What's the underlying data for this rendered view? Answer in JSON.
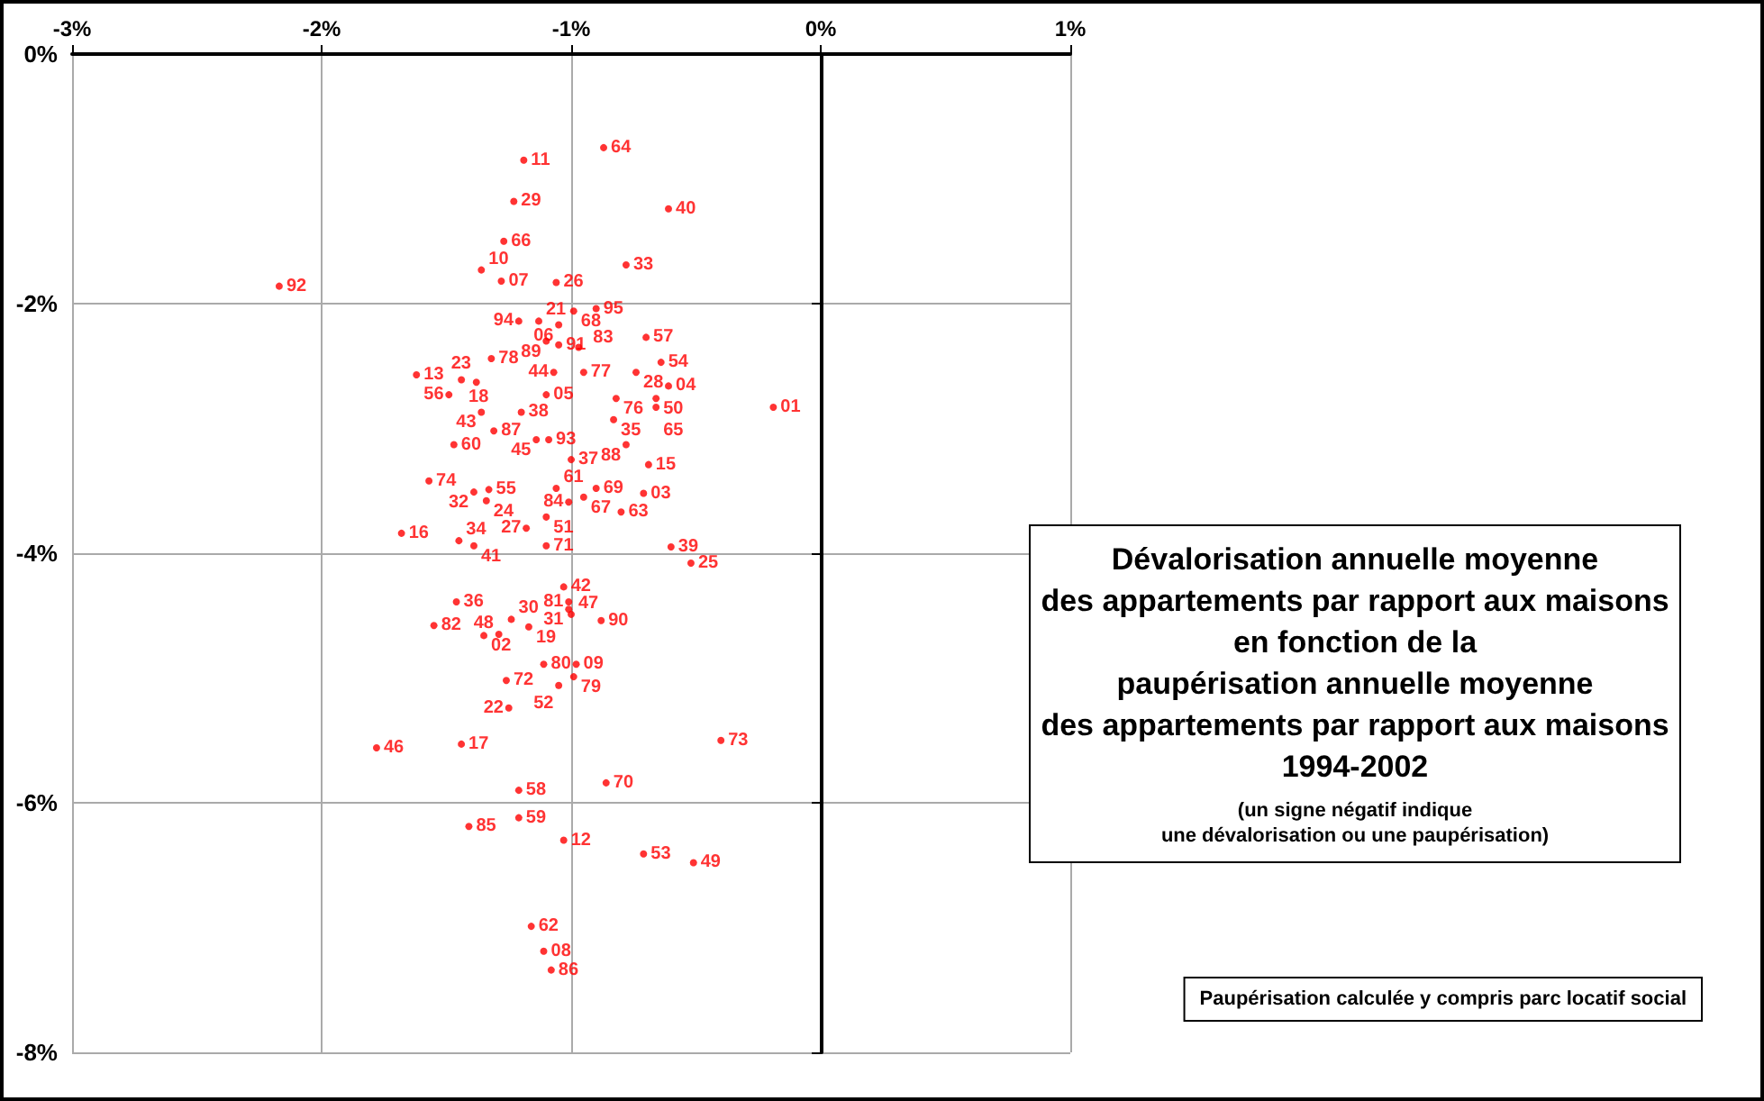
{
  "chart_data": {
    "type": "scatter",
    "title": "Dévalorisation annuelle moyenne\ndes appartements par rapport aux maisons\nen fonction de la\npaupérisation annuelle moyenne\ndes appartements par rapport aux maisons\n1994-2002",
    "subtitle": "(un signe négatif indique\nune dévalorisation ou une paupérisation)",
    "annotations": [
      "Paupérisation calculée y compris parc locatif social"
    ],
    "xlim": [
      -3,
      1
    ],
    "xticks": [
      {
        "value": -3,
        "label": "-3%"
      },
      {
        "value": -2,
        "label": "-2%"
      },
      {
        "value": -1,
        "label": "-1%"
      },
      {
        "value": 0,
        "label": "0%"
      },
      {
        "value": 1,
        "label": "1%"
      }
    ],
    "ylim": [
      -8,
      0
    ],
    "yticks": [
      {
        "value": -8,
        "label": "-8%"
      },
      {
        "value": -6,
        "label": "-6%"
      },
      {
        "value": -4,
        "label": "-4%"
      },
      {
        "value": -2,
        "label": "-2%"
      },
      {
        "value": 0,
        "label": "0%"
      }
    ],
    "grid": true,
    "marker": "circle",
    "series": [
      {
        "name": "64",
        "color": "#ff0000",
        "x": [
          -0.87
        ],
        "values": [
          -0.75
        ]
      },
      {
        "name": "11",
        "color": "#ff0000",
        "x": [
          -1.19
        ],
        "values": [
          -0.85
        ]
      },
      {
        "name": "40",
        "color": "#ff0000",
        "x": [
          -0.61
        ],
        "values": [
          -1.24
        ]
      },
      {
        "name": "29",
        "color": "#ff0000",
        "x": [
          -1.23
        ],
        "values": [
          -1.18
        ]
      },
      {
        "name": "66",
        "color": "#ff0000",
        "x": [
          -1.27
        ],
        "values": [
          -1.5
        ]
      },
      {
        "name": "33",
        "color": "#ff0000",
        "x": [
          -0.78
        ],
        "values": [
          -1.69
        ]
      },
      {
        "name": "10",
        "color": "#ff0000",
        "x": [
          -1.36
        ],
        "values": [
          -1.73
        ]
      },
      {
        "name": "07",
        "color": "#ff0000",
        "x": [
          -1.28
        ],
        "values": [
          -1.82
        ]
      },
      {
        "name": "26",
        "color": "#ff0000",
        "x": [
          -1.06
        ],
        "values": [
          -1.83
        ]
      },
      {
        "name": "92",
        "color": "#ff0000",
        "x": [
          -2.17
        ],
        "values": [
          -1.86
        ]
      },
      {
        "name": "68",
        "color": "#ff0000",
        "x": [
          -0.99
        ],
        "values": [
          -2.06
        ]
      },
      {
        "name": "95",
        "color": "#ff0000",
        "x": [
          -0.9
        ],
        "values": [
          -2.04
        ]
      },
      {
        "name": "94",
        "color": "#ff0000",
        "x": [
          -1.21
        ],
        "values": [
          -2.14
        ]
      },
      {
        "name": "21",
        "color": "#ff0000",
        "x": [
          -1.13
        ],
        "values": [
          -2.14
        ]
      },
      {
        "name": "06",
        "color": "#ff0000",
        "x": [
          -1.05
        ],
        "values": [
          -2.17
        ]
      },
      {
        "name": "89",
        "color": "#ff0000",
        "x": [
          -1.1
        ],
        "values": [
          -2.3
        ]
      },
      {
        "name": "91",
        "color": "#ff0000",
        "x": [
          -1.05
        ],
        "values": [
          -2.33
        ]
      },
      {
        "name": "83",
        "color": "#ff0000",
        "x": [
          -0.97
        ],
        "values": [
          -2.35
        ]
      },
      {
        "name": "57",
        "color": "#ff0000",
        "x": [
          -0.7
        ],
        "values": [
          -2.27
        ]
      },
      {
        "name": "78",
        "color": "#ff0000",
        "x": [
          -1.32
        ],
        "values": [
          -2.44
        ]
      },
      {
        "name": "54",
        "color": "#ff0000",
        "x": [
          -0.64
        ],
        "values": [
          -2.47
        ]
      },
      {
        "name": "13",
        "color": "#ff0000",
        "x": [
          -1.62
        ],
        "values": [
          -2.57
        ]
      },
      {
        "name": "18",
        "color": "#ff0000",
        "x": [
          -1.44
        ],
        "values": [
          -2.61
        ]
      },
      {
        "name": "23",
        "color": "#ff0000",
        "x": [
          -1.38
        ],
        "values": [
          -2.63
        ]
      },
      {
        "name": "44",
        "color": "#ff0000",
        "x": [
          -1.07
        ],
        "values": [
          -2.55
        ]
      },
      {
        "name": "77",
        "color": "#ff0000",
        "x": [
          -0.95
        ],
        "values": [
          -2.55
        ]
      },
      {
        "name": "28",
        "color": "#ff0000",
        "x": [
          -0.74
        ],
        "values": [
          -2.55
        ]
      },
      {
        "name": "04",
        "color": "#ff0000",
        "x": [
          -0.61
        ],
        "values": [
          -2.66
        ]
      },
      {
        "name": "56",
        "color": "#ff0000",
        "x": [
          -1.49
        ],
        "values": [
          -2.73
        ]
      },
      {
        "name": "05",
        "color": "#ff0000",
        "x": [
          -1.1
        ],
        "values": [
          -2.73
        ]
      },
      {
        "name": "76",
        "color": "#ff0000",
        "x": [
          -0.82
        ],
        "values": [
          -2.76
        ]
      },
      {
        "name": "50",
        "color": "#ff0000",
        "x": [
          -0.66
        ],
        "values": [
          -2.76
        ]
      },
      {
        "name": "65",
        "color": "#ff0000",
        "x": [
          -0.66
        ],
        "values": [
          -2.83
        ]
      },
      {
        "name": "01",
        "color": "#ff0000",
        "x": [
          -0.19
        ],
        "values": [
          -2.83
        ]
      },
      {
        "name": "43",
        "color": "#ff0000",
        "x": [
          -1.36
        ],
        "values": [
          -2.87
        ]
      },
      {
        "name": "38",
        "color": "#ff0000",
        "x": [
          -1.2
        ],
        "values": [
          -2.87
        ]
      },
      {
        "name": "35",
        "color": "#ff0000",
        "x": [
          -0.83
        ],
        "values": [
          -2.93
        ]
      },
      {
        "name": "87",
        "color": "#ff0000",
        "x": [
          -1.31
        ],
        "values": [
          -3.02
        ]
      },
      {
        "name": "45",
        "color": "#ff0000",
        "x": [
          -1.14
        ],
        "values": [
          -3.09
        ]
      },
      {
        "name": "93",
        "color": "#ff0000",
        "x": [
          -1.09
        ],
        "values": [
          -3.09
        ]
      },
      {
        "name": "60",
        "color": "#ff0000",
        "x": [
          -1.47
        ],
        "values": [
          -3.13
        ]
      },
      {
        "name": "88",
        "color": "#ff0000",
        "x": [
          -0.78
        ],
        "values": [
          -3.13
        ]
      },
      {
        "name": "37",
        "color": "#ff0000",
        "x": [
          -1.0
        ],
        "values": [
          -3.25
        ]
      },
      {
        "name": "15",
        "color": "#ff0000",
        "x": [
          -0.69
        ],
        "values": [
          -3.29
        ]
      },
      {
        "name": "74",
        "color": "#ff0000",
        "x": [
          -1.57
        ],
        "values": [
          -3.42
        ]
      },
      {
        "name": "32",
        "color": "#ff0000",
        "x": [
          -1.39
        ],
        "values": [
          -3.51
        ]
      },
      {
        "name": "55",
        "color": "#ff0000",
        "x": [
          -1.33
        ],
        "values": [
          -3.49
        ]
      },
      {
        "name": "24",
        "color": "#ff0000",
        "x": [
          -1.34
        ],
        "values": [
          -3.58
        ]
      },
      {
        "name": "61",
        "color": "#ff0000",
        "x": [
          -1.06
        ],
        "values": [
          -3.48
        ]
      },
      {
        "name": "69",
        "color": "#ff0000",
        "x": [
          -0.9
        ],
        "values": [
          -3.48
        ]
      },
      {
        "name": "67",
        "color": "#ff0000",
        "x": [
          -0.95
        ],
        "values": [
          -3.55
        ]
      },
      {
        "name": "84",
        "color": "#ff0000",
        "x": [
          -1.01
        ],
        "values": [
          -3.59
        ]
      },
      {
        "name": "03",
        "color": "#ff0000",
        "x": [
          -0.71
        ],
        "values": [
          -3.52
        ]
      },
      {
        "name": "63",
        "color": "#ff0000",
        "x": [
          -0.8
        ],
        "values": [
          -3.67
        ]
      },
      {
        "name": "51",
        "color": "#ff0000",
        "x": [
          -1.1
        ],
        "values": [
          -3.71
        ]
      },
      {
        "name": "27",
        "color": "#ff0000",
        "x": [
          -1.18
        ],
        "values": [
          -3.8
        ]
      },
      {
        "name": "16",
        "color": "#ff0000",
        "x": [
          -1.68
        ],
        "values": [
          -3.84
        ]
      },
      {
        "name": "34",
        "color": "#ff0000",
        "x": [
          -1.45
        ],
        "values": [
          -3.9
        ]
      },
      {
        "name": "41",
        "color": "#ff0000",
        "x": [
          -1.39
        ],
        "values": [
          -3.94
        ]
      },
      {
        "name": "71",
        "color": "#ff0000",
        "x": [
          -1.1
        ],
        "values": [
          -3.94
        ]
      },
      {
        "name": "39",
        "color": "#ff0000",
        "x": [
          -0.6
        ],
        "values": [
          -3.95
        ]
      },
      {
        "name": "25",
        "color": "#ff0000",
        "x": [
          -0.52
        ],
        "values": [
          -4.08
        ]
      },
      {
        "name": "42",
        "color": "#ff0000",
        "x": [
          -1.03
        ],
        "values": [
          -4.27
        ]
      },
      {
        "name": "36",
        "color": "#ff0000",
        "x": [
          -1.46
        ],
        "values": [
          -4.39
        ]
      },
      {
        "name": "81",
        "color": "#ff0000",
        "x": [
          -1.01
        ],
        "values": [
          -4.39
        ]
      },
      {
        "name": "31",
        "color": "#ff0000",
        "x": [
          -1.01
        ],
        "values": [
          -4.45
        ]
      },
      {
        "name": "47",
        "color": "#ff0000",
        "x": [
          -1.0
        ],
        "values": [
          -4.49
        ]
      },
      {
        "name": "90",
        "color": "#ff0000",
        "x": [
          -0.88
        ],
        "values": [
          -4.54
        ]
      },
      {
        "name": "82",
        "color": "#ff0000",
        "x": [
          -1.55
        ],
        "values": [
          -4.58
        ]
      },
      {
        "name": "30",
        "color": "#ff0000",
        "x": [
          -1.24
        ],
        "values": [
          -4.53
        ]
      },
      {
        "name": "19",
        "color": "#ff0000",
        "x": [
          -1.17
        ],
        "values": [
          -4.59
        ]
      },
      {
        "name": "02",
        "color": "#ff0000",
        "x": [
          -1.35
        ],
        "values": [
          -4.66
        ]
      },
      {
        "name": "48",
        "color": "#ff0000",
        "x": [
          -1.29
        ],
        "values": [
          -4.65
        ]
      },
      {
        "name": "80",
        "color": "#ff0000",
        "x": [
          -1.11
        ],
        "values": [
          -4.89
        ]
      },
      {
        "name": "09",
        "color": "#ff0000",
        "x": [
          -0.98
        ],
        "values": [
          -4.89
        ]
      },
      {
        "name": "79",
        "color": "#ff0000",
        "x": [
          -0.99
        ],
        "values": [
          -4.99
        ]
      },
      {
        "name": "72",
        "color": "#ff0000",
        "x": [
          -1.26
        ],
        "values": [
          -5.02
        ]
      },
      {
        "name": "52",
        "color": "#ff0000",
        "x": [
          -1.05
        ],
        "values": [
          -5.06
        ]
      },
      {
        "name": "22",
        "color": "#ff0000",
        "x": [
          -1.25
        ],
        "values": [
          -5.24
        ]
      },
      {
        "name": "46",
        "color": "#ff0000",
        "x": [
          -1.78
        ],
        "values": [
          -5.56
        ]
      },
      {
        "name": "17",
        "color": "#ff0000",
        "x": [
          -1.44
        ],
        "values": [
          -5.53
        ]
      },
      {
        "name": "73",
        "color": "#ff0000",
        "x": [
          -0.4
        ],
        "values": [
          -5.5
        ]
      },
      {
        "name": "70",
        "color": "#ff0000",
        "x": [
          -0.86
        ],
        "values": [
          -5.84
        ]
      },
      {
        "name": "58",
        "color": "#ff0000",
        "x": [
          -1.21
        ],
        "values": [
          -5.9
        ]
      },
      {
        "name": "59",
        "color": "#ff0000",
        "x": [
          -1.21
        ],
        "values": [
          -6.12
        ]
      },
      {
        "name": "85",
        "color": "#ff0000",
        "x": [
          -1.41
        ],
        "values": [
          -6.19
        ]
      },
      {
        "name": "12",
        "color": "#ff0000",
        "x": [
          -1.03
        ],
        "values": [
          -6.3
        ]
      },
      {
        "name": "53",
        "color": "#ff0000",
        "x": [
          -0.71
        ],
        "values": [
          -6.41
        ]
      },
      {
        "name": "49",
        "color": "#ff0000",
        "x": [
          -0.51
        ],
        "values": [
          -6.48
        ]
      },
      {
        "name": "62",
        "color": "#ff0000",
        "x": [
          -1.16
        ],
        "values": [
          -6.99
        ]
      },
      {
        "name": "08",
        "color": "#ff0000",
        "x": [
          -1.11
        ],
        "values": [
          -7.19
        ]
      },
      {
        "name": "86",
        "color": "#ff0000",
        "x": [
          -1.08
        ],
        "values": [
          -7.34
        ]
      }
    ]
  }
}
